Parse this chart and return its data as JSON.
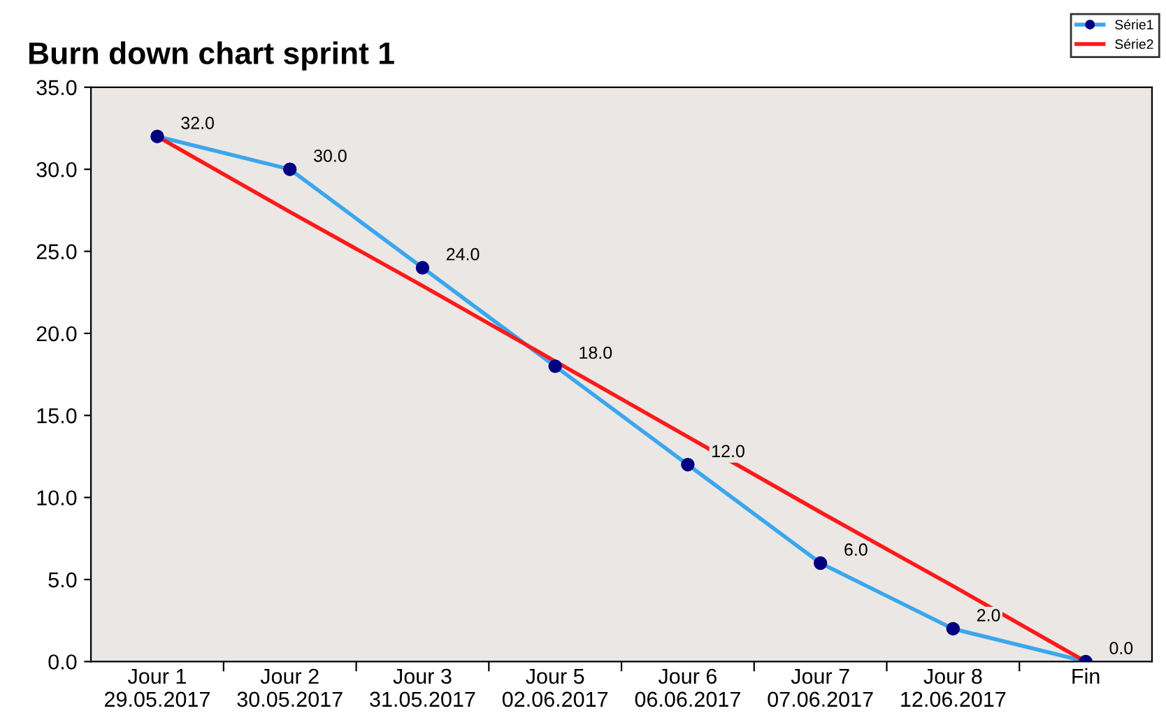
{
  "chart_data": {
    "type": "line",
    "title": "Burn down chart sprint 1",
    "categories": [
      "Jour 1\n29.05.2017",
      "Jour 2\n30.05.2017",
      "Jour 3\n31.05.2017",
      "Jour 5\n02.06.2017",
      "Jour 6\n06.06.2017",
      "Jour 7\n07.06.2017",
      "Jour 8\n12.06.2017",
      "Fin"
    ],
    "series": [
      {
        "name": "Série1",
        "color": "#3aa6ee",
        "marker": "circle",
        "values": [
          32.0,
          30.0,
          24.0,
          18.0,
          12.0,
          6.0,
          2.0,
          0.0
        ],
        "value_labels": [
          "32.0",
          "30.0",
          "24.0",
          "18.0",
          "12.0",
          "6.0",
          "2.0",
          "0.0"
        ]
      },
      {
        "name": "Série2",
        "color": "#ff1a1a",
        "marker": "none",
        "values": [
          32.0,
          27.4,
          22.9,
          18.3,
          13.7,
          9.1,
          4.6,
          0.0
        ]
      }
    ],
    "ylim": [
      0,
      35
    ],
    "yticks": [
      {
        "value": 0,
        "label": "0.0"
      },
      {
        "value": 5,
        "label": "5.0"
      },
      {
        "value": 10,
        "label": "10.0"
      },
      {
        "value": 15,
        "label": "15.0"
      },
      {
        "value": 20,
        "label": "20.0"
      },
      {
        "value": 25,
        "label": "25.0"
      },
      {
        "value": 30,
        "label": "30.0"
      },
      {
        "value": 35,
        "label": "35.0"
      }
    ],
    "grid": false,
    "legend": "top right",
    "line_style": "solid"
  }
}
